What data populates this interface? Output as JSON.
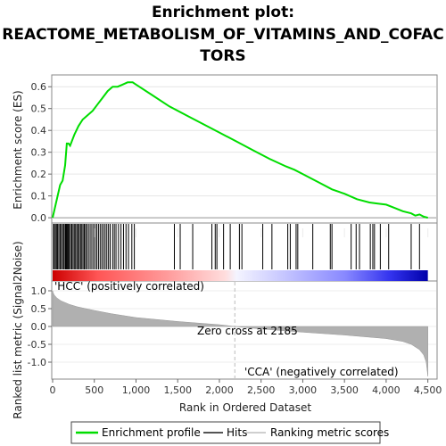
{
  "title": {
    "line1": "Enrichment plot:",
    "line2": "REACTOME_METABOLISM_OF_VITAMINS_AND_COFAC",
    "line3": "TORS"
  },
  "colors": {
    "enrichment": "#00dd00",
    "hits": "#000000",
    "ranking_fill": "#b0b0b0",
    "pos_label": "#cc0000",
    "neg_label": "#0000cc",
    "zero_line": "#bbbbbb"
  },
  "chart_data": [
    {
      "type": "line",
      "name": "enrichment-profile",
      "ylabel": "Enrichment score (ES)",
      "xlim": [
        0,
        4600
      ],
      "ylim": [
        -0.02,
        0.65
      ],
      "yticks": [
        0.0,
        0.1,
        0.2,
        0.3,
        0.4,
        0.5,
        0.6
      ],
      "ytick_labels": [
        "0.0",
        "0.1",
        "0.2",
        "0.3",
        "0.4",
        "0.5",
        "0.6"
      ],
      "x": [
        0,
        30,
        60,
        90,
        120,
        150,
        170,
        190,
        210,
        260,
        310,
        360,
        420,
        480,
        540,
        600,
        660,
        720,
        780,
        840,
        900,
        960,
        1000,
        1200,
        1400,
        1600,
        1800,
        2000,
        2200,
        2400,
        2600,
        2800,
        2900,
        3000,
        3200,
        3350,
        3500,
        3650,
        3800,
        3900,
        4000,
        4100,
        4200,
        4300,
        4350,
        4400,
        4450,
        4500
      ],
      "y": [
        0.0,
        0.05,
        0.1,
        0.15,
        0.17,
        0.24,
        0.34,
        0.34,
        0.33,
        0.38,
        0.42,
        0.45,
        0.47,
        0.49,
        0.52,
        0.55,
        0.58,
        0.6,
        0.6,
        0.61,
        0.62,
        0.62,
        0.61,
        0.56,
        0.51,
        0.47,
        0.43,
        0.39,
        0.35,
        0.31,
        0.27,
        0.235,
        0.22,
        0.2,
        0.16,
        0.13,
        0.11,
        0.085,
        0.07,
        0.065,
        0.06,
        0.045,
        0.03,
        0.02,
        0.01,
        0.015,
        0.005,
        0.0
      ]
    },
    {
      "type": "scatter",
      "name": "hits",
      "legend": "Hits",
      "x": [
        10,
        20,
        35,
        50,
        60,
        75,
        90,
        105,
        120,
        135,
        150,
        160,
        170,
        180,
        190,
        200,
        215,
        230,
        245,
        260,
        275,
        290,
        305,
        320,
        335,
        350,
        365,
        380,
        395,
        410,
        430,
        450,
        470,
        490,
        510,
        530,
        550,
        570,
        590,
        610,
        630,
        650,
        670,
        690,
        720,
        740,
        760,
        790,
        820,
        850,
        880,
        910,
        950,
        980,
        1460,
        1530,
        1680,
        1910,
        1950,
        1970,
        2050,
        2130,
        2240,
        2270,
        2520,
        2630,
        2820,
        2850,
        2920,
        2940,
        3120,
        3330,
        3350,
        3580,
        3640,
        3680,
        3810,
        3840,
        3860,
        3930,
        4030,
        4300,
        4400
      ]
    },
    {
      "type": "area",
      "name": "ranked-list-metric",
      "legend": "Ranking metric scores",
      "ylabel": "Ranked list metric (Signal2Noise)",
      "xlabel": "Rank in Ordered Dataset",
      "xlim": [
        0,
        4600
      ],
      "ylim": [
        -1.45,
        1.25
      ],
      "xticks": [
        0,
        500,
        1000,
        1500,
        2000,
        2500,
        3000,
        3500,
        4000,
        4500
      ],
      "xtick_labels": [
        "0",
        "500",
        "1,000",
        "1,500",
        "2,000",
        "2,500",
        "3,000",
        "3,500",
        "4,000",
        "4,500"
      ],
      "yticks": [
        1.0,
        0.5,
        0.0,
        -0.5,
        -1.0
      ],
      "ytick_labels": [
        "1.0",
        "0.5",
        "0.0",
        "-0.5",
        "-1.0"
      ],
      "x": [
        0,
        5,
        20,
        50,
        100,
        200,
        300,
        500,
        700,
        1000,
        1500,
        2000,
        2185,
        2500,
        3000,
        3500,
        4000,
        4200,
        4300,
        4400,
        4450,
        4480,
        4500
      ],
      "y": [
        1.0,
        0.95,
        0.88,
        0.8,
        0.72,
        0.62,
        0.55,
        0.45,
        0.36,
        0.25,
        0.14,
        0.05,
        0.0,
        -0.07,
        -0.16,
        -0.24,
        -0.34,
        -0.42,
        -0.5,
        -0.65,
        -0.8,
        -1.0,
        -1.4
      ],
      "zero_cross": 2185
    }
  ],
  "annotations": {
    "pos_label": "'HCC' (positively correlated)",
    "neg_label": "'CCA' (negatively correlated)",
    "zero_cross": "Zero cross at 2185"
  },
  "legend": {
    "enrichment": "Enrichment profile",
    "hits": "Hits",
    "ranking": "Ranking metric scores"
  }
}
